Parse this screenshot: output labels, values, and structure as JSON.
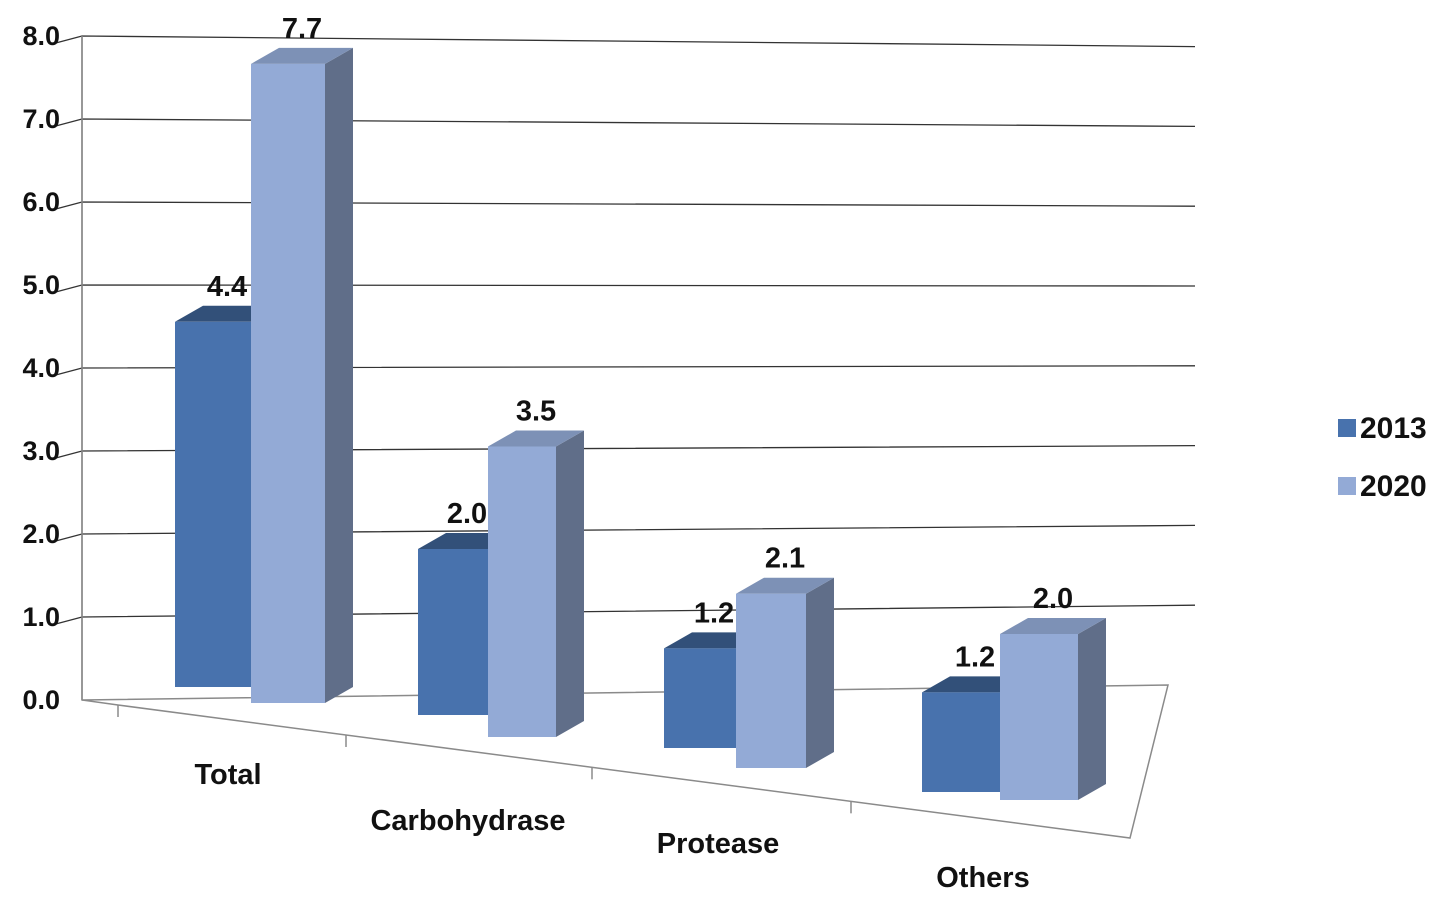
{
  "chart_data": {
    "type": "bar",
    "categories": [
      "Total",
      "Carbohydrase",
      "Protease",
      "Others"
    ],
    "series": [
      {
        "name": "2013",
        "values": [
          4.4,
          2.0,
          1.2,
          1.2
        ],
        "value_labels": [
          "4.4",
          "2.0",
          "1.2",
          "1.2"
        ],
        "color": "#4872ad"
      },
      {
        "name": "2020",
        "values": [
          7.7,
          3.5,
          2.1,
          2.0
        ],
        "value_labels": [
          "7.7",
          "3.5",
          "2.1",
          "2.0"
        ],
        "color": "#93aad6"
      }
    ],
    "yticks": [
      "0.0",
      "1.0",
      "2.0",
      "3.0",
      "4.0",
      "5.0",
      "6.0",
      "7.0",
      "8.0"
    ],
    "ylim": [
      0,
      8
    ],
    "grid": true,
    "legend": "right",
    "style": "3d-clustered-column"
  }
}
